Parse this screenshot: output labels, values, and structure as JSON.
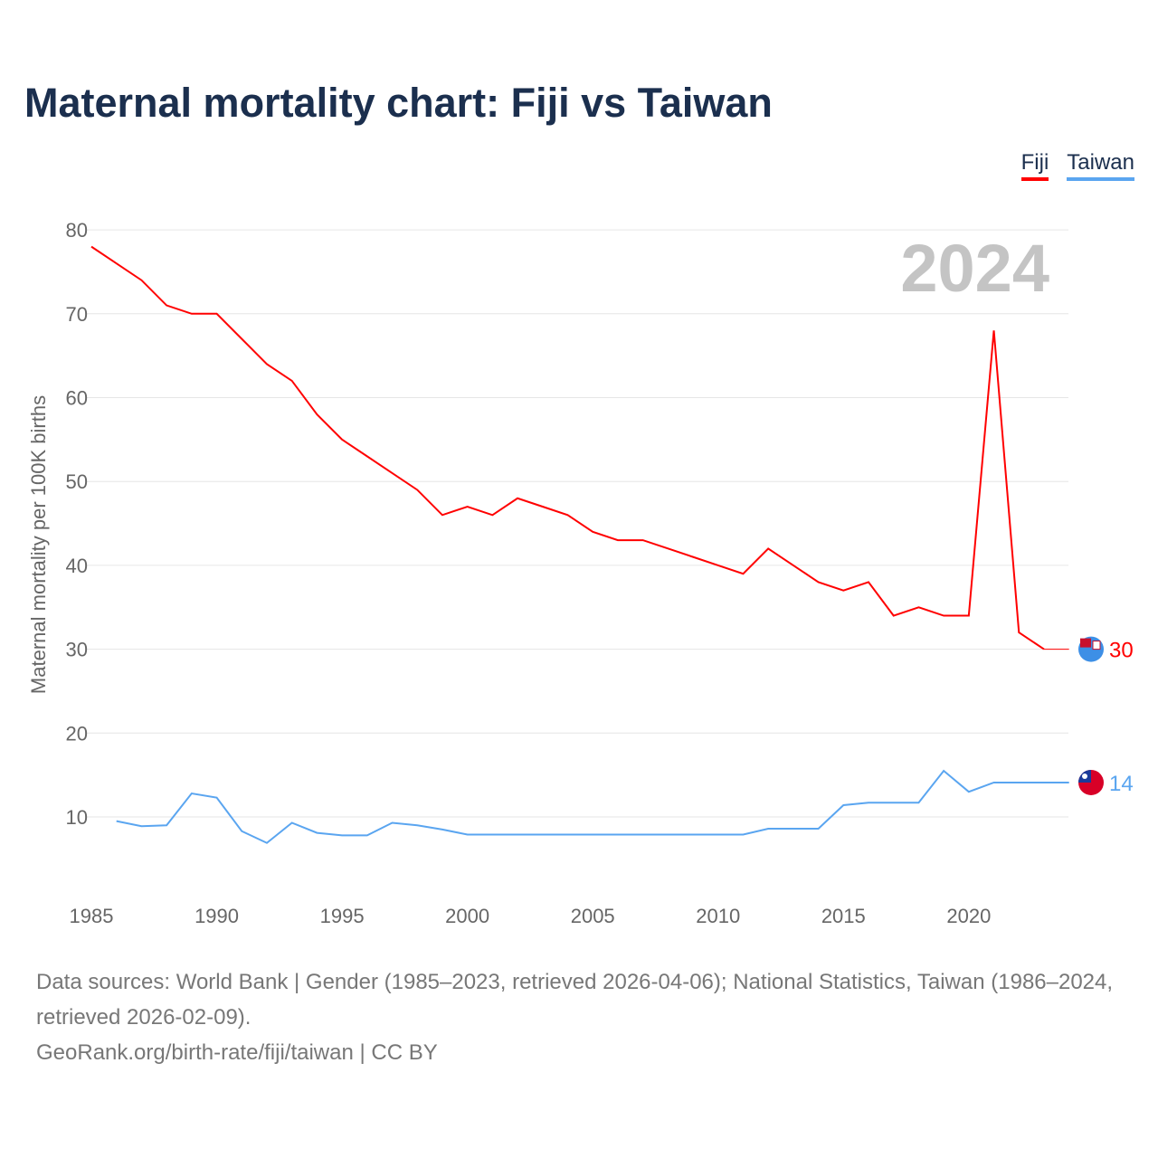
{
  "title": "Maternal mortality chart: Fiji vs Taiwan",
  "legend": [
    {
      "name": "Fiji",
      "color": "#ff0000"
    },
    {
      "name": "Taiwan",
      "color": "#5aa5f0"
    }
  ],
  "footer": {
    "sources": "Data sources: World Bank | Gender (1985–2023, retrieved 2026-04-06); National Statistics, Taiwan (1986–2024, retrieved 2026-02-09).",
    "credit": "GeoRank.org/birth-rate/fiji/taiwan | CC BY"
  },
  "chart_data": {
    "type": "line",
    "title": "Maternal mortality chart: Fiji vs Taiwan",
    "ylabel": "Maternal mortality per 100K births",
    "xlabel": "",
    "year_label": "2024",
    "xlim": [
      1985,
      2024
    ],
    "ylim": [
      0,
      80
    ],
    "xticks": [
      1985,
      1990,
      1995,
      2000,
      2005,
      2010,
      2015,
      2020
    ],
    "yticks": [
      10,
      20,
      30,
      40,
      50,
      60,
      70,
      80
    ],
    "grid": true,
    "legend_position": "top-right",
    "series": [
      {
        "name": "Fiji",
        "color": "#ff0000",
        "end_label": "30",
        "flag": "fiji-flag",
        "x": [
          1985,
          1986,
          1987,
          1988,
          1989,
          1990,
          1991,
          1992,
          1993,
          1994,
          1995,
          1996,
          1997,
          1998,
          1999,
          2000,
          2001,
          2002,
          2003,
          2004,
          2005,
          2006,
          2007,
          2008,
          2009,
          2010,
          2011,
          2012,
          2013,
          2014,
          2015,
          2016,
          2017,
          2018,
          2019,
          2020,
          2021,
          2022,
          2023
        ],
        "values": [
          78,
          76,
          74,
          71,
          70,
          70,
          67,
          64,
          62,
          58,
          55,
          53,
          51,
          49,
          46,
          47,
          46,
          48,
          47,
          46,
          44,
          43,
          43,
          42,
          41,
          40,
          39,
          42,
          40,
          38,
          37,
          38,
          34,
          35,
          34,
          34,
          68,
          32,
          30
        ]
      },
      {
        "name": "Taiwan",
        "color": "#5aa5f0",
        "end_label": "14",
        "flag": "taiwan-flag",
        "x": [
          1986,
          1987,
          1988,
          1989,
          1990,
          1991,
          1992,
          1993,
          1994,
          1995,
          1996,
          1997,
          1998,
          1999,
          2000,
          2001,
          2002,
          2003,
          2004,
          2005,
          2006,
          2007,
          2008,
          2009,
          2010,
          2011,
          2012,
          2013,
          2014,
          2015,
          2016,
          2017,
          2018,
          2019,
          2020,
          2021,
          2022,
          2023,
          2024
        ],
        "values": [
          9.5,
          8.9,
          9.0,
          12.8,
          12.3,
          8.3,
          6.9,
          9.3,
          8.1,
          7.8,
          7.8,
          9.3,
          9.0,
          8.5,
          7.9,
          7.9,
          7.9,
          7.9,
          7.9,
          7.9,
          7.9,
          7.9,
          7.9,
          7.9,
          7.9,
          7.9,
          8.6,
          8.6,
          8.6,
          11.4,
          11.7,
          11.7,
          11.7,
          15.5,
          13.0,
          14.1,
          14.1,
          14.1,
          14.1
        ]
      }
    ]
  }
}
